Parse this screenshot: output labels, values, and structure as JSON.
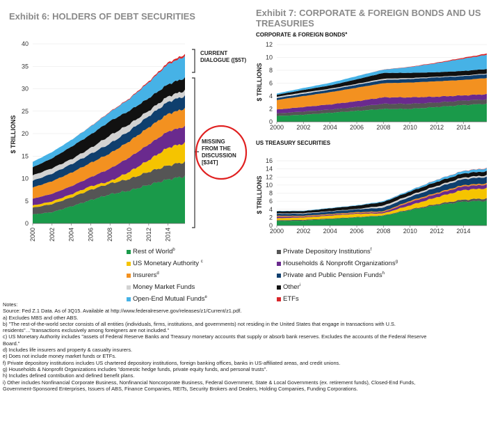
{
  "exhibit6": {
    "title": "Exhibit 6: HOLDERS OF DEBT SECURITIES",
    "ylabel": "$ TRILLIONS",
    "callout_current": [
      "CURRENT",
      "DIALOGUE ([$5T)"
    ],
    "callout_missing": [
      "MISSING",
      "FROM THE",
      "DISCUSSION",
      "[$34T]"
    ]
  },
  "exhibit7": {
    "title_lines": [
      "Exhibit 7: CORPORATE & FOREIGN BONDS AND US",
      "TREASURIES"
    ],
    "sub1": "CORPORATE & FOREIGN BONDS",
    "sub1_sup": "a",
    "sub2": "US TREASURY SECURITIES",
    "ylabel": "$ TRILLIONS"
  },
  "legend": [
    {
      "label": "Rest of World",
      "sup": "b",
      "color": "#1a9a4a"
    },
    {
      "label": "US Monetary Authority ",
      "sup": "c",
      "color": "#f5c400"
    },
    {
      "label": "Insurers",
      "sup": "d",
      "color": "#f39120"
    },
    {
      "label": "Money Market Funds",
      "sup": "",
      "color": "#d2d2d2"
    },
    {
      "label": "Open-End Mutual Funds",
      "sup": "e",
      "color": "#46b2e6"
    },
    {
      "label": "Private Depository Institutions",
      "sup": "f",
      "color": "#555555"
    },
    {
      "label": "Households & Nonprofit Organizations",
      "sup": "g",
      "color": "#6a2a8e"
    },
    {
      "label": "Private and Public Pension Funds",
      "sup": "h",
      "color": "#0f3f6e"
    },
    {
      "label": "Other",
      "sup": "i",
      "color": "#111111"
    },
    {
      "label": "ETFs",
      "sup": "",
      "color": "#d9262a"
    }
  ],
  "notes": {
    "title": "Notes:",
    "lines": [
      "Source: Fed Z.1 Data.  As of 3Q15. Available at http://www.federalreserve.gov/releases/z1/Current/z1.pdf.",
      "a)  Excludes MBS and other ABS.",
      "b)  \"The rest-of-the-world sector consists of all entities (individuals, firms, institutions, and governments) not residing in the United States that engage in transactions with U.S.",
      "      residents\"…\"transactions exclusively among foreigners are not included.\"",
      "c)  US Monetary Authority includes \"assets of Federal Reserve Banks and Treasury monetary accounts that supply or absorb bank reserves.  Excludes the accounts of the Federal Reserve",
      "      Board.\"",
      "d)  Includes life insurers and property & casualty insurers.",
      "e)  Does not include money market funds or ETFs.",
      "f)   Private depository institutions includes US chartered depository institutions, foreign banking offices, banks in US-affiliated areas, and credit unions.",
      "g)  Households & Nonprofit Organizations includes \"domestic hedge funds, private equity funds, and personal trusts\".",
      "h)  Includes defined contribution and defined benefit plans.",
      "i)   Other includes Nonfinancial Corporate Business, Nonfinancial Noncorporate Business, Federal Government, State & Local Governments (ex. retirement funds), Closed-End Funds,",
      "      Government-Sponsored Enterprises, Issuers of ABS, Finance Companies, REITs, Security Brokers and Dealers, Holding Companies, Funding Corporations."
    ]
  },
  "chart_data": [
    {
      "type": "area",
      "title": "Exhibit 6: HOLDERS OF DEBT SECURITIES",
      "ylabel": "$ TRILLIONS",
      "ylim": [
        0,
        40
      ],
      "yticks": [
        0,
        5,
        10,
        15,
        20,
        25,
        30,
        35,
        40
      ],
      "xlim": [
        2000,
        2015.75
      ],
      "xticks": [
        "2000",
        "2002",
        "2004",
        "2006",
        "2008",
        "2010",
        "2012",
        "2014"
      ],
      "x": [
        2000,
        2002,
        2004,
        2006,
        2008,
        2010,
        2012,
        2014,
        2015.75
      ],
      "series": [
        {
          "name": "Rest of World",
          "color": "#1a9a4a",
          "values": [
            2.0,
            2.5,
            3.8,
            5.2,
            6.5,
            7.3,
            8.6,
            9.8,
            10.5
          ]
        },
        {
          "name": "Private Depository Institutions",
          "color": "#555555",
          "values": [
            1.5,
            1.8,
            2.0,
            2.3,
            2.4,
            2.6,
            2.9,
            3.1,
            3.2
          ]
        },
        {
          "name": "US Monetary Authority",
          "color": "#f5c400",
          "values": [
            0.5,
            0.6,
            0.7,
            0.8,
            0.5,
            1.6,
            2.6,
            4.0,
            4.2
          ]
        },
        {
          "name": "Households & Nonprofit Organizations",
          "color": "#6a2a8e",
          "values": [
            1.5,
            1.7,
            1.8,
            2.0,
            2.8,
            3.2,
            3.5,
            3.6,
            3.7
          ]
        },
        {
          "name": "Insurers",
          "color": "#f39120",
          "values": [
            2.5,
            2.8,
            3.0,
            3.2,
            3.4,
            3.6,
            3.8,
            3.9,
            4.0
          ]
        },
        {
          "name": "Private and Public Pension Funds",
          "color": "#0f3f6e",
          "values": [
            1.5,
            1.7,
            1.9,
            2.0,
            2.2,
            2.3,
            2.5,
            2.7,
            2.8
          ]
        },
        {
          "name": "Money Market Funds",
          "color": "#d2d2d2",
          "values": [
            1.2,
            1.2,
            1.1,
            1.3,
            1.8,
            1.5,
            1.2,
            1.2,
            1.2
          ]
        },
        {
          "name": "Other",
          "color": "#111111",
          "values": [
            1.8,
            2.2,
            2.8,
            3.0,
            3.2,
            3.0,
            2.8,
            2.7,
            2.8
          ]
        },
        {
          "name": "Open-End Mutual Funds",
          "color": "#46b2e6",
          "values": [
            1.2,
            1.4,
            1.5,
            1.8,
            2.0,
            2.6,
            3.5,
            4.5,
            4.8
          ]
        },
        {
          "name": "ETFs",
          "color": "#d9262a",
          "values": [
            0.0,
            0.0,
            0.0,
            0.05,
            0.1,
            0.15,
            0.25,
            0.35,
            0.45
          ]
        }
      ]
    },
    {
      "type": "area",
      "title": "CORPORATE & FOREIGN BONDS",
      "ylabel": "$ TRILLIONS",
      "ylim": [
        0,
        12
      ],
      "yticks": [
        0,
        2,
        4,
        6,
        8,
        10,
        12
      ],
      "xlim": [
        2000,
        2015.75
      ],
      "xticks": [
        "2000",
        "2002",
        "2004",
        "2006",
        "2008",
        "2010",
        "2012",
        "2014"
      ],
      "x": [
        2000,
        2002,
        2004,
        2006,
        2008,
        2010,
        2012,
        2014,
        2015.75
      ],
      "series": [
        {
          "name": "Rest of World",
          "color": "#1a9a4a",
          "values": [
            0.9,
            1.1,
            1.4,
            1.7,
            2.0,
            2.0,
            2.3,
            2.6,
            2.8
          ]
        },
        {
          "name": "Private Depository Institutions",
          "color": "#555555",
          "values": [
            0.4,
            0.5,
            0.5,
            0.6,
            0.8,
            0.8,
            0.7,
            0.7,
            0.7
          ]
        },
        {
          "name": "Households & Nonprofit Organizations",
          "color": "#6a2a8e",
          "values": [
            0.6,
            0.7,
            0.8,
            0.9,
            1.0,
            1.0,
            0.9,
            0.8,
            0.8
          ]
        },
        {
          "name": "Insurers",
          "color": "#f39120",
          "values": [
            1.5,
            1.7,
            1.9,
            2.1,
            2.2,
            2.3,
            2.4,
            2.4,
            2.5
          ]
        },
        {
          "name": "Private and Public Pension Funds",
          "color": "#0f3f6e",
          "values": [
            0.3,
            0.35,
            0.4,
            0.45,
            0.5,
            0.55,
            0.6,
            0.6,
            0.6
          ]
        },
        {
          "name": "Money Market Funds",
          "color": "#d2d2d2",
          "values": [
            0.2,
            0.2,
            0.15,
            0.15,
            0.2,
            0.15,
            0.1,
            0.1,
            0.1
          ]
        },
        {
          "name": "Other",
          "color": "#111111",
          "values": [
            0.3,
            0.4,
            0.5,
            0.7,
            0.9,
            0.8,
            0.7,
            0.7,
            0.7
          ]
        },
        {
          "name": "Open-End Mutual Funds",
          "color": "#46b2e6",
          "values": [
            0.2,
            0.3,
            0.4,
            0.5,
            0.5,
            0.9,
            1.4,
            1.9,
            2.2
          ]
        },
        {
          "name": "ETFs",
          "color": "#d9262a",
          "values": [
            0.0,
            0.0,
            0.0,
            0.0,
            0.02,
            0.05,
            0.1,
            0.15,
            0.2
          ]
        }
      ]
    },
    {
      "type": "area",
      "title": "US TREASURY SECURITIES",
      "ylabel": "$ TRILLIONS",
      "ylim": [
        0,
        16
      ],
      "yticks": [
        0,
        2,
        4,
        6,
        8,
        10,
        12,
        14,
        16
      ],
      "xlim": [
        2000,
        2015.75
      ],
      "xticks": [
        "2000",
        "2002",
        "2004",
        "2006",
        "2008",
        "2010",
        "2012",
        "2014"
      ],
      "x": [
        2000,
        2002,
        2004,
        2006,
        2008,
        2010,
        2012,
        2014,
        2015.75
      ],
      "series": [
        {
          "name": "Rest of World",
          "color": "#1a9a4a",
          "values": [
            1.1,
            1.2,
            1.6,
            2.0,
            2.4,
            3.8,
            5.0,
            5.9,
            6.1
          ]
        },
        {
          "name": "Private Depository Institutions",
          "color": "#555555",
          "values": [
            0.2,
            0.2,
            0.15,
            0.1,
            0.1,
            0.2,
            0.3,
            0.5,
            0.6
          ]
        },
        {
          "name": "US Monetary Authority",
          "color": "#f5c400",
          "values": [
            0.5,
            0.6,
            0.7,
            0.8,
            0.5,
            1.0,
            1.7,
            2.4,
            2.5
          ]
        },
        {
          "name": "Households & Nonprofit Organizations",
          "color": "#6a2a8e",
          "values": [
            0.4,
            0.2,
            0.2,
            0.2,
            0.3,
            0.8,
            0.8,
            0.9,
            0.9
          ]
        },
        {
          "name": "Insurers",
          "color": "#f39120",
          "values": [
            0.2,
            0.2,
            0.2,
            0.2,
            0.2,
            0.3,
            0.3,
            0.3,
            0.3
          ]
        },
        {
          "name": "Private and Public Pension Funds",
          "color": "#0f3f6e",
          "values": [
            0.5,
            0.5,
            0.6,
            0.7,
            0.9,
            1.0,
            1.3,
            1.5,
            1.6
          ]
        },
        {
          "name": "Money Market Funds",
          "color": "#d2d2d2",
          "values": [
            0.1,
            0.15,
            0.1,
            0.1,
            0.5,
            0.4,
            0.4,
            0.4,
            0.4
          ]
        },
        {
          "name": "Other",
          "color": "#111111",
          "values": [
            0.5,
            0.5,
            0.7,
            0.8,
            0.9,
            0.9,
            1.0,
            1.0,
            1.0
          ]
        },
        {
          "name": "Open-End Mutual Funds",
          "color": "#46b2e6",
          "values": [
            0.1,
            0.1,
            0.1,
            0.1,
            0.2,
            0.3,
            0.5,
            0.6,
            0.7
          ]
        },
        {
          "name": "ETFs",
          "color": "#d9262a",
          "values": [
            0.0,
            0.0,
            0.0,
            0.0,
            0.0,
            0.01,
            0.03,
            0.05,
            0.06
          ]
        }
      ]
    }
  ]
}
